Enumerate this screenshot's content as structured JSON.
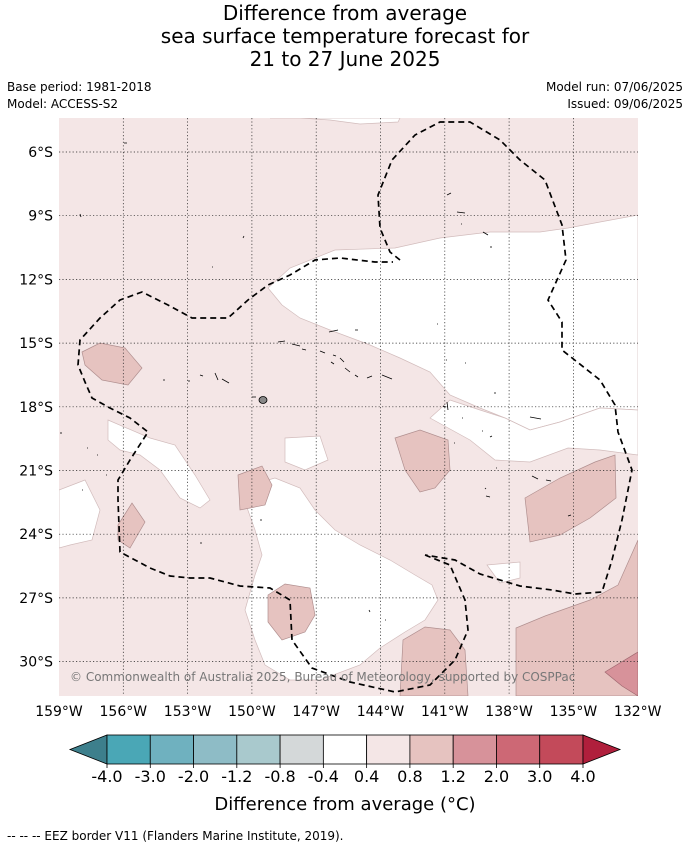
{
  "header": {
    "title_line1": "Difference from average",
    "title_line2": "sea surface temperature forecast for",
    "title_line3": "21 to 27 June 2025",
    "base_period": "Base period: 1981-2018",
    "model": "Model: ACCESS-S2",
    "model_run": "Model run: 07/06/2025",
    "issued": "Issued: 09/06/2025"
  },
  "map": {
    "lat_labels": [
      "6°S",
      "9°S",
      "12°S",
      "15°S",
      "18°S",
      "21°S",
      "24°S",
      "27°S",
      "30°S"
    ],
    "lon_labels": [
      "159°W",
      "156°W",
      "153°W",
      "150°W",
      "147°W",
      "144°W",
      "141°W",
      "138°W",
      "135°W",
      "132°W"
    ],
    "copyright": "© Commonwealth of Australia 2025, Bureau of Meteorology, supported by COSPPac"
  },
  "colorbar": {
    "ticks": [
      "-4.0",
      "-3.0",
      "-2.0",
      "-1.2",
      "-0.8",
      "-0.4",
      "0.4",
      "0.8",
      "1.2",
      "2.0",
      "3.0",
      "4.0"
    ],
    "colors": [
      "#3d7f8c",
      "#4aa7b6",
      "#6fb1bf",
      "#8ebcc6",
      "#a9c9cd",
      "#d4d8d9",
      "#ffffff",
      "#f4e6e6",
      "#e6c3c0",
      "#d7929a",
      "#cd6875",
      "#c34a5a",
      "#b01f3c"
    ],
    "label": "Difference from average (°C)"
  },
  "footer": {
    "legend": "-- -- -- EEZ border V11 (Flanders Marine Institute, 2019)."
  }
}
